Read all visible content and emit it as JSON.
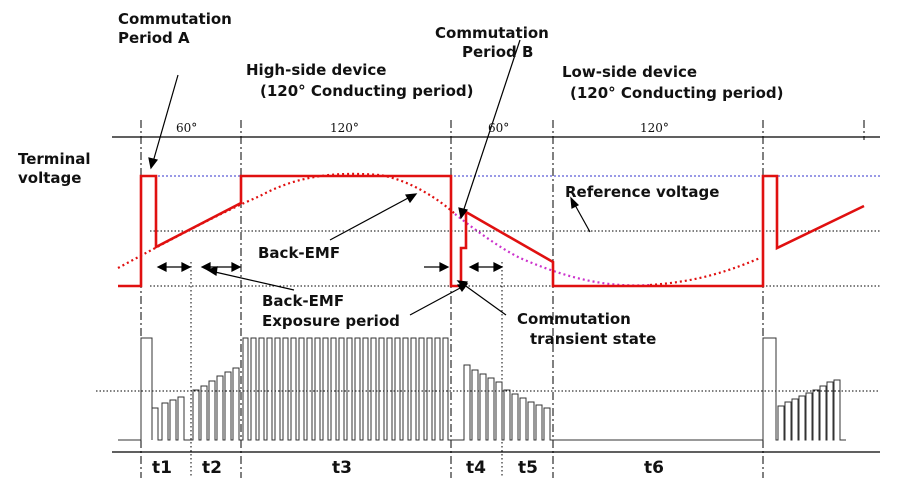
{
  "labels": {
    "commutation_a": [
      "Commutation",
      "Period  A"
    ],
    "commutation_b": [
      "Commutation",
      "Period  B"
    ],
    "high_side": [
      "High-side device",
      "(120° Conducting period)"
    ],
    "low_side": [
      "Low-side device",
      "(120° Conducting period)"
    ],
    "terminal_voltage": [
      "Terminal",
      "voltage"
    ],
    "reference_voltage": "Reference voltage",
    "back_emf": "Back-EMF",
    "back_emf_exposure": [
      "Back-EMF",
      "Exposure period"
    ],
    "commutation_transient": [
      "Commutation",
      "transient state"
    ]
  },
  "angles": [
    "60°",
    "120°",
    "60°",
    "120°"
  ],
  "intervals": [
    "t1",
    "t2",
    "t3",
    "t4",
    "t5",
    "t6"
  ],
  "colors": {
    "terminal_voltage": "#e01010",
    "back_emf": "#e01010",
    "back_emf_transition": "#cc33cc",
    "reference_voltage_line": "#3333cc",
    "axis": "#000000",
    "pwm": "#333333"
  }
}
